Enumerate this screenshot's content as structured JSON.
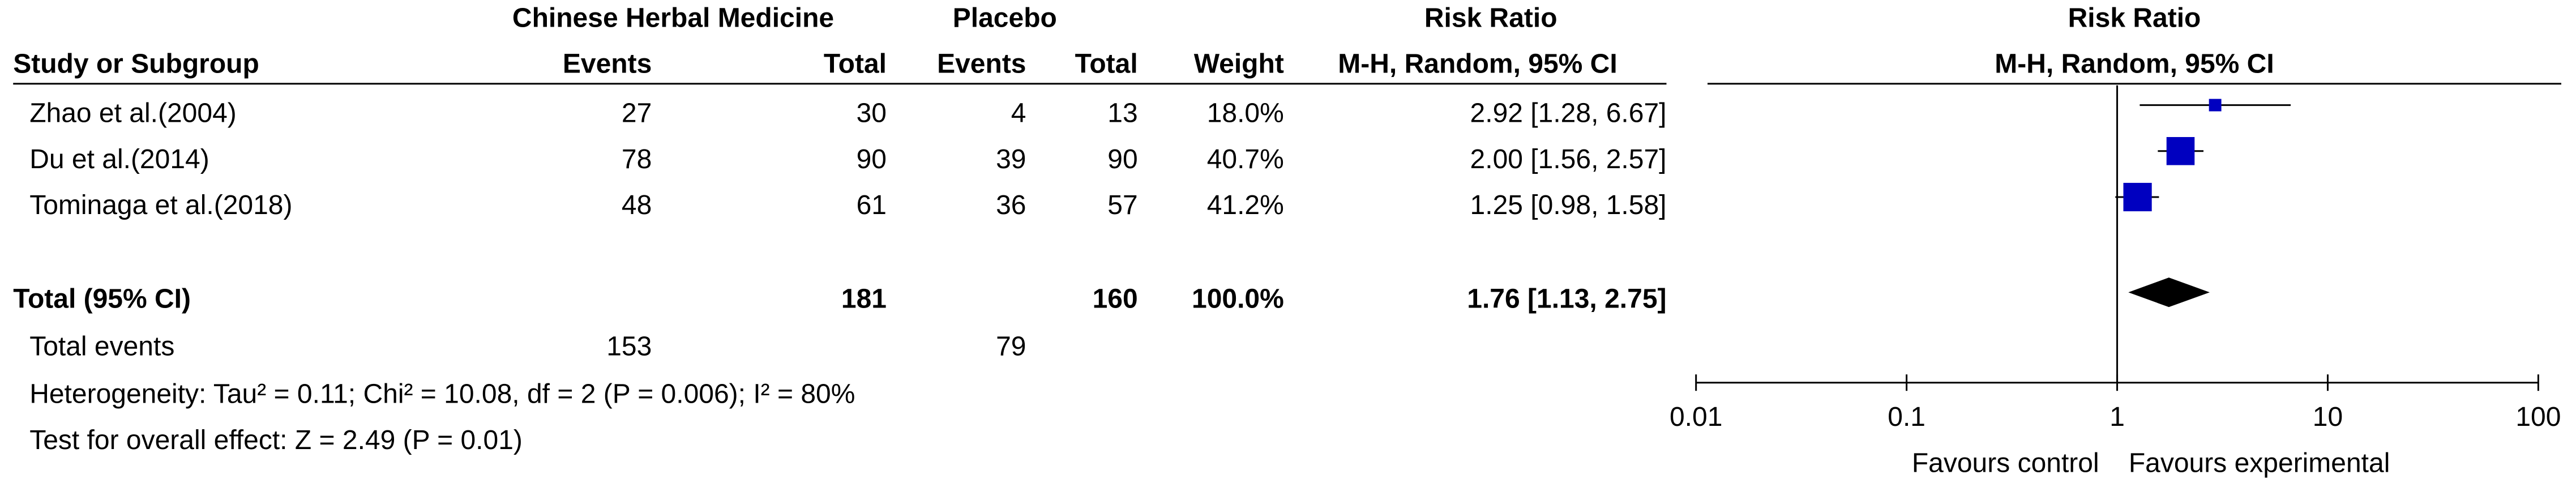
{
  "chart_data": {
    "type": "forest",
    "headers": {
      "group1": "Chinese Herbal Medicine",
      "group2": "Placebo",
      "effect": "Risk Ratio",
      "plot_title": "Risk Ratio",
      "study": "Study or Subgroup",
      "events1": "Events",
      "total1": "Total",
      "events2": "Events",
      "total2": "Total",
      "weight": "Weight",
      "method": "M-H, Random, 95% CI",
      "plot_method": "M-H, Random, 95% CI"
    },
    "studies": [
      {
        "name": "Zhao et al.(2004)",
        "events1": 27,
        "total1": 30,
        "events2": 4,
        "total2": 13,
        "weight": 18.0,
        "weight_label": "18.0%",
        "rr": 2.92,
        "lower": 1.28,
        "upper": 6.67,
        "ci_label": "2.92 [1.28, 6.67]"
      },
      {
        "name": "Du et al.(2014)",
        "events1": 78,
        "total1": 90,
        "events2": 39,
        "total2": 90,
        "weight": 40.7,
        "weight_label": "40.7%",
        "rr": 2.0,
        "lower": 1.56,
        "upper": 2.57,
        "ci_label": "2.00 [1.56, 2.57]"
      },
      {
        "name": "Tominaga et al.(2018)",
        "events1": 48,
        "total1": 61,
        "events2": 36,
        "total2": 57,
        "weight": 41.2,
        "weight_label": "41.2%",
        "rr": 1.25,
        "lower": 0.98,
        "upper": 1.58,
        "ci_label": "1.25 [0.98, 1.58]"
      }
    ],
    "total": {
      "name": "Total (95% CI)",
      "total1": 181,
      "total2": 160,
      "weight_label": "100.0%",
      "rr": 1.76,
      "lower": 1.13,
      "upper": 2.75,
      "ci_label": "1.76 [1.13, 2.75]"
    },
    "events_row": {
      "name": "Total events",
      "events1": 153,
      "events2": 79
    },
    "heterogeneity": "Heterogeneity: Tau² = 0.11; Chi² = 10.08, df = 2 (P = 0.006); I² = 80%",
    "overall": "Test for overall effect: Z = 2.49 (P = 0.01)",
    "xscale": "log",
    "xlim": [
      0.01,
      100
    ],
    "xticks": [
      0.01,
      0.1,
      1,
      10,
      100
    ],
    "favours_left": "Favours control",
    "favours_right": "Favours experimental",
    "color": "#0000c0"
  }
}
